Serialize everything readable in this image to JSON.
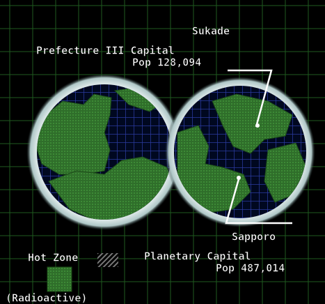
{
  "map": {
    "cities": [
      {
        "name": "Sukade",
        "role": "Prefecture III Capital",
        "population": "Pop 128,094"
      },
      {
        "name": "Sapporo",
        "role": "Planetary Capital",
        "population": "Pop 487,014"
      }
    ],
    "legend": {
      "label": "Hot Zone",
      "note": "(Radioactive)"
    }
  }
}
